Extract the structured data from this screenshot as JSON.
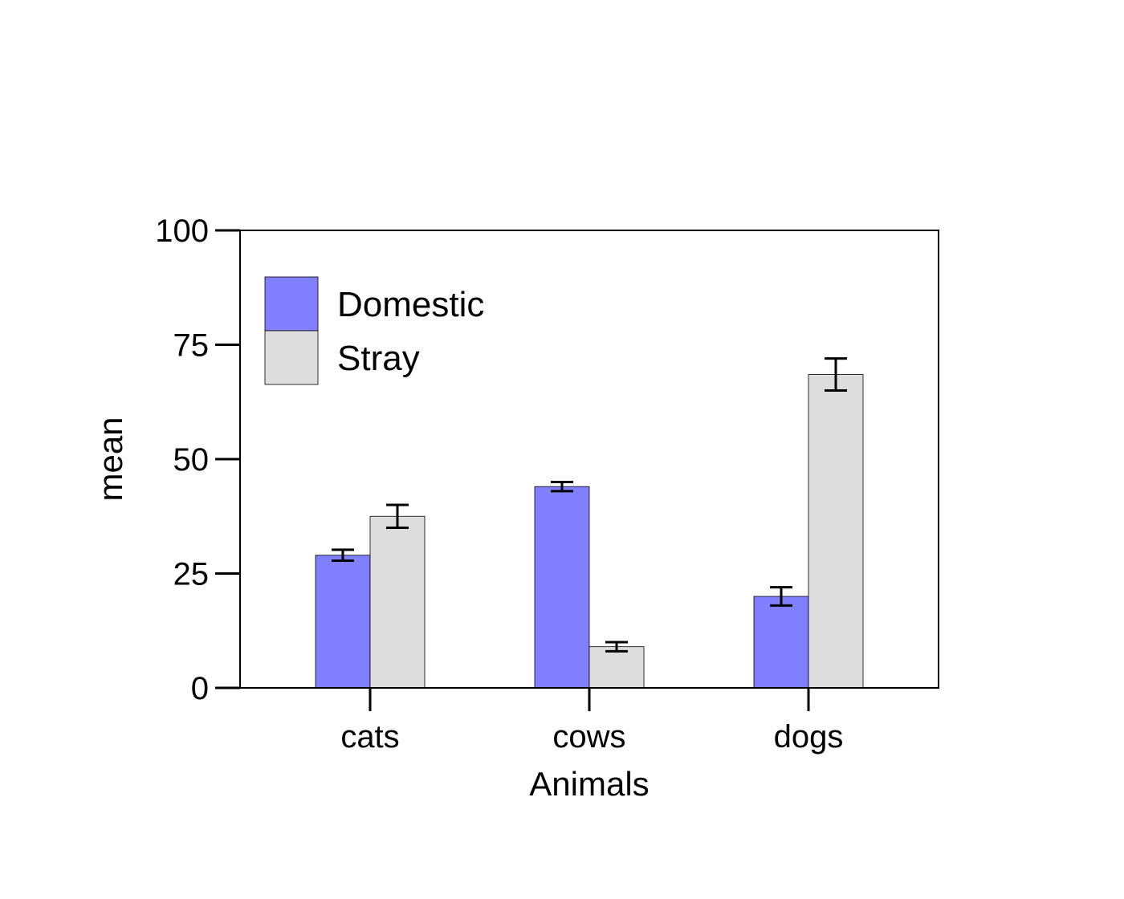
{
  "chart_data": {
    "type": "bar",
    "title": "",
    "xlabel": "Animals",
    "ylabel": "mean",
    "ylim": [
      0,
      100
    ],
    "yticks": [
      0,
      25,
      50,
      75,
      100
    ],
    "categories": [
      "cats",
      "cows",
      "dogs"
    ],
    "series": [
      {
        "name": "Domestic",
        "color": "#8080ff",
        "values": [
          29,
          44,
          20
        ],
        "errors": [
          1.2,
          1.0,
          2.0
        ]
      },
      {
        "name": "Stray",
        "color": "#dddddd",
        "values": [
          37.5,
          9,
          68.5
        ],
        "errors": [
          2.5,
          1.0,
          3.5
        ]
      }
    ],
    "legend_position": "top-left",
    "error_bars": true,
    "grid": false
  }
}
